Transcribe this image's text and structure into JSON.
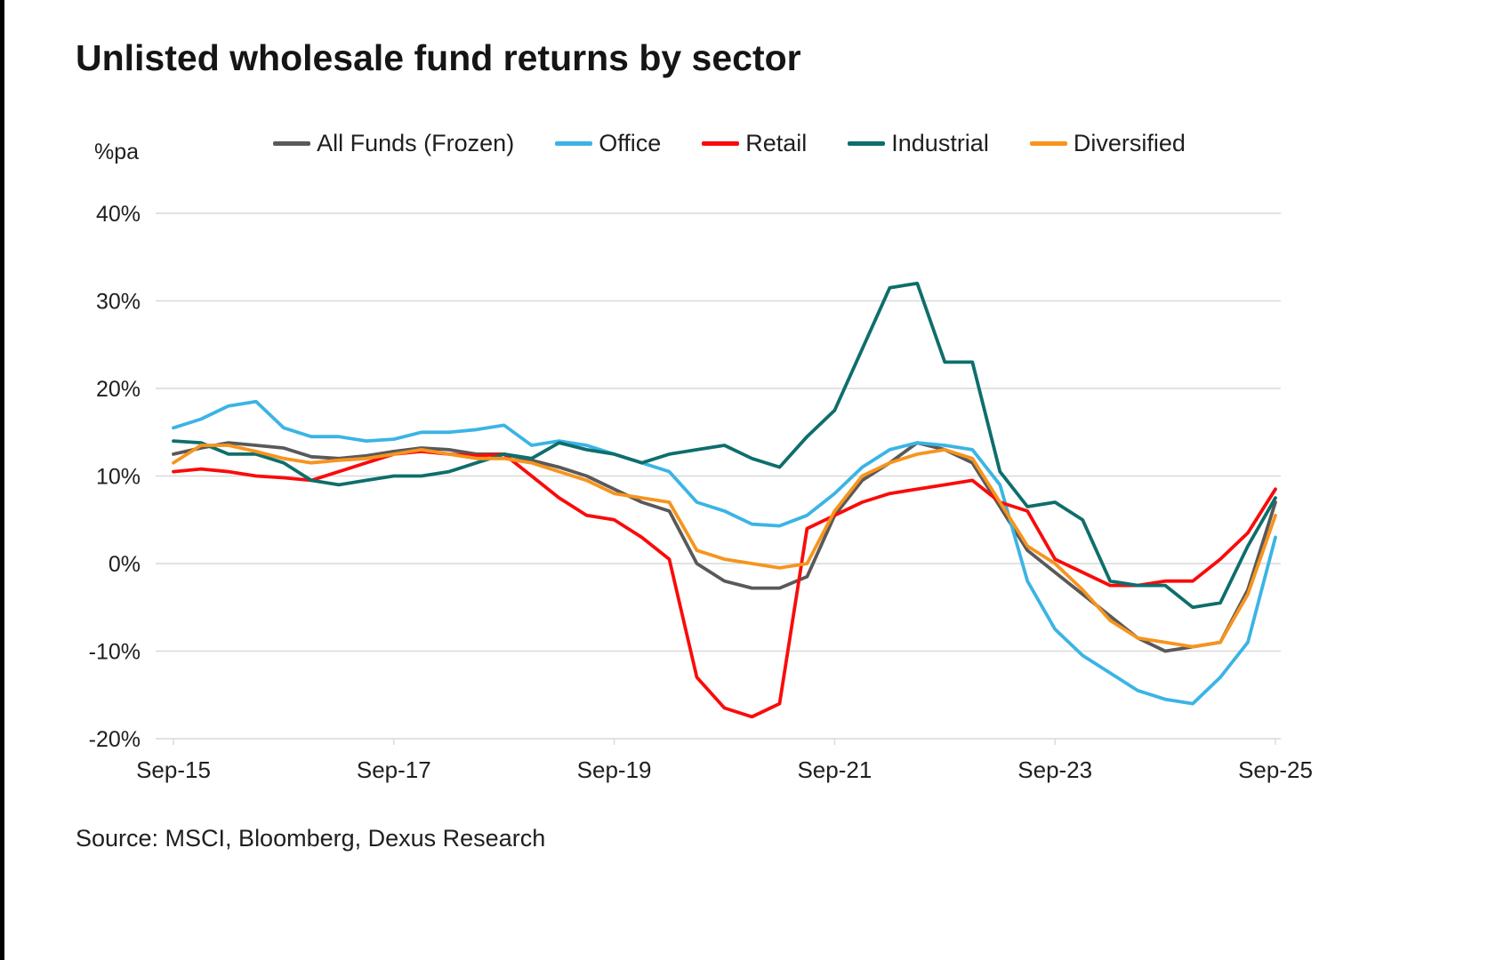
{
  "page": {
    "title": "Unlisted wholesale fund returns by sector",
    "y_axis_unit": "%pa",
    "source": "Source: MSCI, Bloomberg, Dexus Research"
  },
  "chart_data": {
    "type": "line",
    "title": "Unlisted wholesale fund returns by sector",
    "xlabel": "",
    "ylabel": "%pa",
    "ylim": [
      -20,
      40
    ],
    "ytick_step": 10,
    "ytick_labels": [
      "40%",
      "30%",
      "20%",
      "10%",
      "0%",
      "-10%",
      "-20%"
    ],
    "xtick_labels": [
      "Sep-15",
      "Sep-17",
      "Sep-19",
      "Sep-21",
      "Sep-23",
      "Sep-25"
    ],
    "xtick_every": 8,
    "grid": "horizontal",
    "grid_color": "#D9D9D9",
    "text_color": "#1F1F1F",
    "legend_position": "top",
    "line_width": 3.8,
    "x": [
      "Sep-15",
      "Dec-15",
      "Mar-16",
      "Jun-16",
      "Sep-16",
      "Dec-16",
      "Mar-17",
      "Jun-17",
      "Sep-17",
      "Dec-17",
      "Mar-18",
      "Jun-18",
      "Sep-18",
      "Dec-18",
      "Mar-19",
      "Jun-19",
      "Sep-19",
      "Dec-19",
      "Mar-20",
      "Jun-20",
      "Sep-20",
      "Dec-20",
      "Mar-21",
      "Jun-21",
      "Sep-21",
      "Dec-21",
      "Mar-22",
      "Jun-22",
      "Sep-22",
      "Dec-22",
      "Mar-23",
      "Jun-23",
      "Sep-23",
      "Dec-23",
      "Mar-24",
      "Jun-24",
      "Sep-24",
      "Dec-24",
      "Mar-25",
      "Jun-25",
      "Sep-25"
    ],
    "series": [
      {
        "name": "All Funds (Frozen)",
        "color": "#595959",
        "values": [
          12.5,
          13.2,
          13.8,
          13.5,
          13.2,
          12.2,
          12.0,
          12.3,
          12.8,
          13.2,
          13.0,
          12.5,
          12.5,
          11.8,
          11.0,
          10.0,
          8.5,
          7.0,
          6.0,
          0.0,
          -2.0,
          -2.8,
          -2.8,
          -1.5,
          5.5,
          9.5,
          11.5,
          13.8,
          13.0,
          11.5,
          6.5,
          1.5,
          -1.0,
          -3.5,
          -6.0,
          -8.5,
          -10.0,
          -9.5,
          -9.0,
          -3.0,
          7.0
        ]
      },
      {
        "name": "Office",
        "color": "#3BB4E5",
        "values": [
          15.5,
          16.5,
          18.0,
          18.5,
          15.5,
          14.5,
          14.5,
          14.0,
          14.2,
          15.0,
          15.0,
          15.3,
          15.8,
          13.5,
          14.0,
          13.5,
          12.5,
          11.5,
          10.5,
          7.0,
          6.0,
          4.5,
          4.3,
          5.5,
          8.0,
          11.0,
          13.0,
          13.8,
          13.5,
          13.0,
          9.0,
          -2.0,
          -7.5,
          -10.5,
          -12.5,
          -14.5,
          -15.5,
          -16.0,
          -13.0,
          -9.0,
          3.0
        ]
      },
      {
        "name": "Retail",
        "color": "#FA0B0B",
        "values": [
          10.5,
          10.8,
          10.5,
          10.0,
          9.8,
          9.5,
          10.5,
          11.5,
          12.5,
          12.8,
          12.5,
          12.3,
          12.5,
          10.0,
          7.5,
          5.5,
          5.0,
          3.0,
          0.5,
          -13.0,
          -16.5,
          -17.5,
          -16.0,
          4.0,
          5.5,
          7.0,
          8.0,
          8.5,
          9.0,
          9.5,
          7.0,
          6.0,
          0.5,
          -1.0,
          -2.5,
          -2.5,
          -2.0,
          -2.0,
          0.5,
          3.5,
          8.5
        ]
      },
      {
        "name": "Industrial",
        "color": "#0E6E6C",
        "values": [
          14.0,
          13.8,
          12.5,
          12.5,
          11.5,
          9.5,
          9.0,
          9.5,
          10.0,
          10.0,
          10.5,
          11.5,
          12.5,
          12.0,
          13.8,
          13.0,
          12.5,
          11.5,
          12.5,
          13.0,
          13.5,
          12.0,
          11.0,
          14.5,
          17.5,
          24.5,
          31.5,
          32.0,
          23.0,
          23.0,
          10.5,
          6.5,
          7.0,
          5.0,
          -2.0,
          -2.5,
          -2.5,
          -5.0,
          -4.5,
          2.0,
          7.5
        ]
      },
      {
        "name": "Diversified",
        "color": "#F7941E",
        "values": [
          11.5,
          13.5,
          13.5,
          12.8,
          12.0,
          11.5,
          11.8,
          12.0,
          12.5,
          13.0,
          12.5,
          12.0,
          12.0,
          11.5,
          10.5,
          9.5,
          8.0,
          7.5,
          7.0,
          1.5,
          0.5,
          0.0,
          -0.5,
          0.0,
          6.0,
          10.0,
          11.5,
          12.5,
          13.0,
          12.0,
          7.0,
          2.0,
          0.0,
          -3.0,
          -6.5,
          -8.5,
          -9.0,
          -9.5,
          -9.0,
          -3.5,
          5.5
        ]
      }
    ]
  }
}
